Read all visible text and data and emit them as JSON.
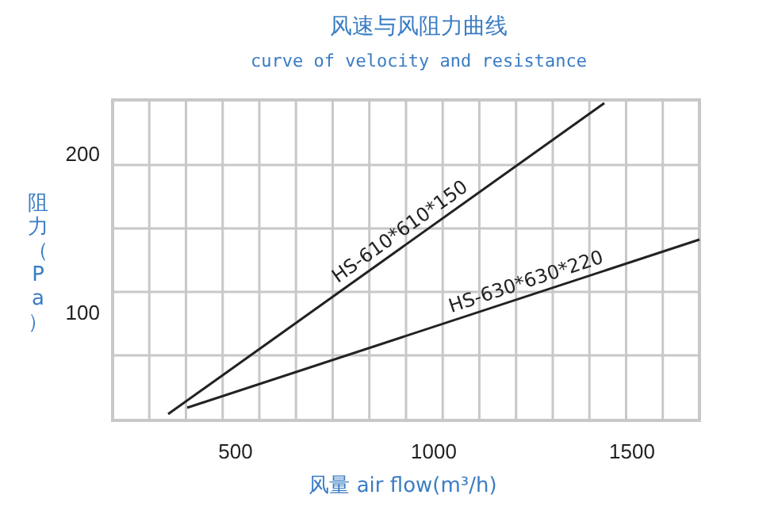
{
  "chart_data": {
    "type": "line",
    "title": "风速与风阻力曲线",
    "subtitle": "curve of velocity and resistance",
    "xlabel": "风量 air flow(m³/h)",
    "ylabel": "阻力（Pa）",
    "xlim": [
      190,
      1670
    ],
    "ylim": [
      32,
      234
    ],
    "xticks": [
      {
        "value": 282.5,
        "label": null
      },
      {
        "value": 375,
        "label": null
      },
      {
        "value": 467.5,
        "label": null
      },
      500,
      {
        "value": 560,
        "label": null
      },
      {
        "value": 652.5,
        "label": null
      },
      {
        "value": 745,
        "label": null
      },
      {
        "value": 837.5,
        "label": null
      },
      {
        "value": 930,
        "label": null
      },
      1000,
      {
        "value": 1022.5,
        "label": null
      },
      {
        "value": 1115,
        "label": null
      },
      {
        "value": 1207.5,
        "label": null
      },
      {
        "value": 1300,
        "label": null
      },
      {
        "value": 1392.5,
        "label": null
      },
      {
        "value": 1485,
        "label": null
      },
      1500,
      {
        "value": 1577.5,
        "label": null
      }
    ],
    "yticks": [
      {
        "value": 73,
        "label": null
      },
      100,
      {
        "value": 113,
        "label": null
      },
      {
        "value": 153,
        "label": null
      },
      {
        "value": 193,
        "label": null
      },
      200
    ],
    "grid": true,
    "marker": "none",
    "line_style": "solid",
    "series": [
      {
        "name": "HS-610*610*150",
        "color": "#222222",
        "x": [
          330,
          1430
        ],
        "values": [
          36,
          232
        ]
      },
      {
        "name": "HS-630*630*220",
        "color": "#222222",
        "x": [
          378,
          1670
        ],
        "values": [
          40,
          146
        ]
      }
    ]
  }
}
